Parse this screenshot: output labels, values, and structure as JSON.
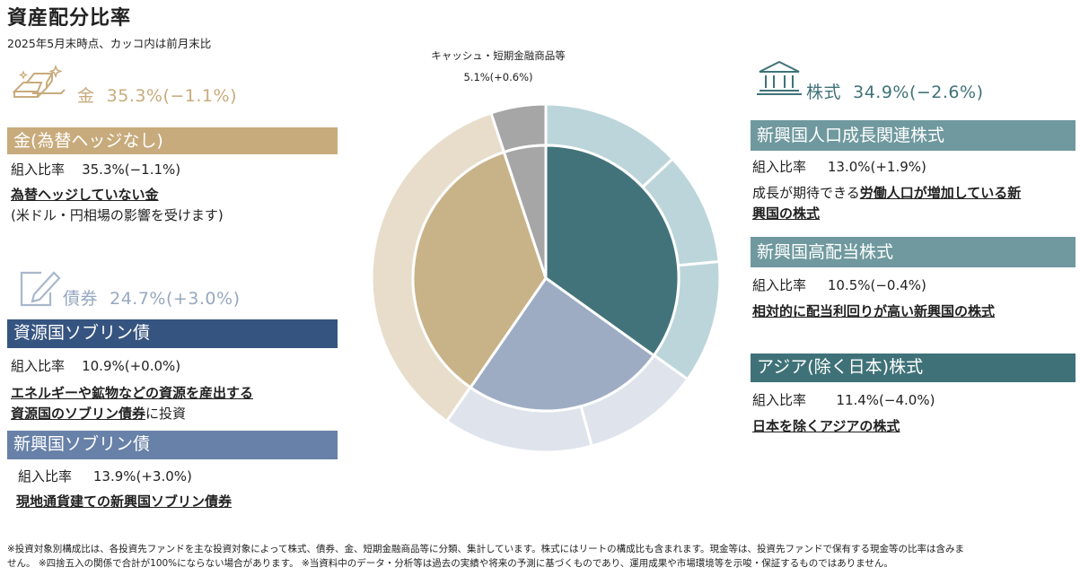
{
  "header": {
    "title": "資産配分比率",
    "subtitle": "2025年5月末時点、カッコ内は前月末比"
  },
  "categories": {
    "gold": {
      "label": "金",
      "value": "35.3%(−1.1%)"
    },
    "bond": {
      "label": "債券",
      "value": "24.7%(+3.0%)"
    },
    "stock": {
      "label": "株式",
      "value": "34.9%(−2.6%)"
    },
    "cash": {
      "label": "キャッシュ・短期金融商品等",
      "value": "5.1%(+0.6%)"
    }
  },
  "funds": {
    "gold_nohedge": {
      "name": "金(為替ヘッジなし)",
      "ratio_label": "組入比率",
      "ratio": "35.3%(−1.1%)",
      "desc_ul": "為替ヘッジしていない金",
      "desc2": "(米ドル・円相場の影響を受けます)"
    },
    "resource_sov": {
      "name": "資源国ソブリン債",
      "ratio_label": "組入比率",
      "ratio": "10.9%(+0.0%)",
      "desc_ul1": "エネルギーや鉱物などの資源を産出する",
      "desc_ul2": "資源国のソブリン債券",
      "desc_tail": "に投資"
    },
    "em_sov": {
      "name": "新興国ソブリン債",
      "ratio_label": "組入比率",
      "ratio": "13.9%(+3.0%)",
      "desc_ul": "現地通貨建ての新興国ソブリン債券"
    },
    "em_pop": {
      "name": "新興国人口成長関連株式",
      "ratio_label": "組入比率",
      "ratio": "13.0%(+1.9%)",
      "desc_pre": "成長が期待できる",
      "desc_ul1": "労働人口が増加している新",
      "desc_ul2": "興国の株式"
    },
    "em_div": {
      "name": "新興国高配当株式",
      "ratio_label": "組入比率",
      "ratio": "10.5%(−0.4%)",
      "desc_ul": "相対的に配当利回りが高い新興国の株式"
    },
    "asia": {
      "name": "アジア(除く日本)株式",
      "ratio_label": "組入比率",
      "ratio": "11.4%(−4.0%)",
      "desc_ul": "日本を除くアジアの株式"
    }
  },
  "colors": {
    "gold_inner": "#c8b287",
    "gold_outer": "#e8ddcb",
    "gold_bar": "#c8ab7c",
    "bond_inner": "#9dacc3",
    "bond_outer": "#dfe4ec",
    "resource_bar": "#365480",
    "em_bond_bar": "#6881a8",
    "stock_inner": "#42737a",
    "stock_outer": "#bcd5da",
    "stock_bar": "#6f999e",
    "asia_bar": "#3f7278",
    "cash": "#a6a6a6"
  },
  "chart_data": {
    "type": "pie",
    "inner": {
      "categories": [
        "株式",
        "債券",
        "金",
        "キャッシュ・短期金融商品等"
      ],
      "values": [
        34.9,
        24.7,
        35.3,
        5.1
      ]
    },
    "outer": {
      "categories": [
        "新興国人口成長関連株式",
        "新興国高配当株式",
        "アジア(除く日本)株式",
        "資源国ソブリン債",
        "新興国ソブリン債",
        "金(為替ヘッジなし)",
        "キャッシュ・短期金融商品等"
      ],
      "values": [
        13.0,
        10.5,
        11.4,
        10.9,
        13.9,
        35.3,
        5.1
      ]
    }
  },
  "footer": {
    "line1": "※投資対象別構成比は、各投資先ファンドを主な投資対象によって株式、債券、金、短期金融商品等に分類、集計しています。株式にはリートの構成比も含まれます。現金等は、投資先ファンドで保有する現金等の比率は含みま",
    "line2": "せん。 ※四捨五入の関係で合計が100%にならない場合があります。 ※当資料中のデータ・分析等は過去の実績や将来の予測に基づくものであり、運用成果や市場環境等を示唆・保証するものではありません。"
  }
}
